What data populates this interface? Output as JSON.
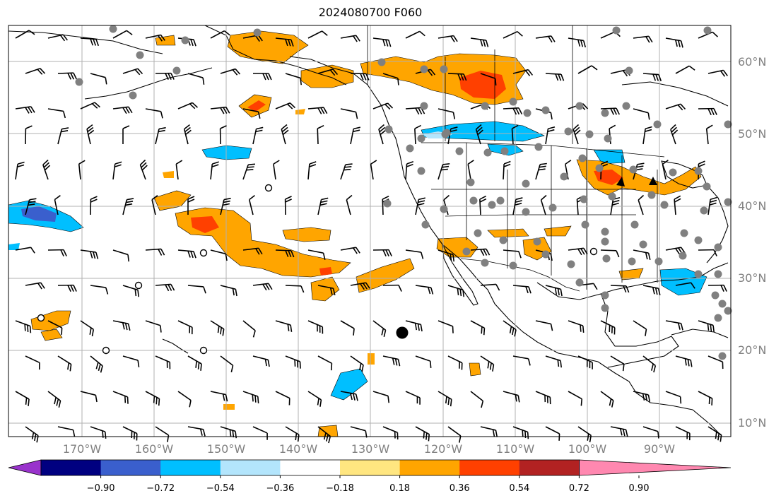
{
  "title": "2024080700 F060",
  "map": {
    "lat_labels": [
      "60°N",
      "50°N",
      "40°N",
      "30°N",
      "20°N",
      "10°N"
    ],
    "lon_labels": [
      "170°W",
      "160°W",
      "150°W",
      "140°W",
      "130°W",
      "120°W",
      "110°W",
      "100°W",
      "90°W"
    ],
    "marker_icons": [
      "gray-station-dot-icon",
      "open-circle-station-icon",
      "black-dot-marker-icon",
      "triangle-marker-icon",
      "wind-barb-icon"
    ],
    "land_outline_color": "#000000",
    "grid_color": "#b0b0b0"
  },
  "colorbar": {
    "tick_labels": [
      "−0.90",
      "−0.72",
      "−0.54",
      "−0.36",
      "−0.18",
      "0.18",
      "0.36",
      "0.54",
      "0.72",
      "0.90"
    ],
    "colors": [
      "#9933cc",
      "#000080",
      "#3a5fcd",
      "#00bfff",
      "#b3e5fc",
      "#ffffff",
      "#ffe680",
      "#ffa500",
      "#ff4000",
      "#b22222",
      "#ff88b0"
    ]
  }
}
